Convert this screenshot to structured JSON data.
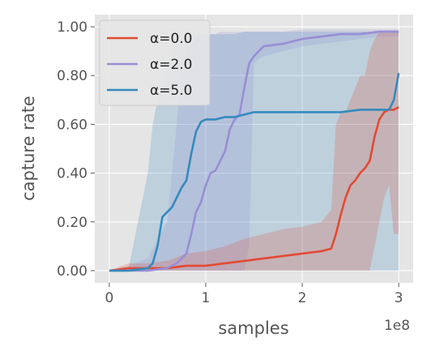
{
  "chart_data": {
    "type": "line",
    "xlabel": "samples",
    "ylabel": "capture rate",
    "x_multiplier_label": "1e8",
    "xlim": [
      -0.15,
      3.15
    ],
    "ylim": [
      -0.05,
      1.05
    ],
    "x_ticks": [
      0,
      1,
      2,
      3
    ],
    "x_tick_labels": [
      "0",
      "1",
      "2",
      "3"
    ],
    "y_ticks": [
      0.0,
      0.2,
      0.4,
      0.6,
      0.8,
      1.0
    ],
    "y_tick_labels": [
      "0.00",
      "0.20",
      "0.40",
      "0.60",
      "0.80",
      "1.00"
    ],
    "grid": true,
    "legend_position": "top-left",
    "series": [
      {
        "name": "α=0.0",
        "color": "#E24A33",
        "x": [
          0,
          0.2,
          0.4,
          0.6,
          0.8,
          1.0,
          1.2,
          1.4,
          1.6,
          1.8,
          2.0,
          2.2,
          2.3,
          2.35,
          2.4,
          2.45,
          2.5,
          2.55,
          2.6,
          2.65,
          2.7,
          2.75,
          2.8,
          2.85,
          2.9,
          2.95,
          3.0
        ],
        "y": [
          0.0,
          0.01,
          0.01,
          0.01,
          0.02,
          0.02,
          0.03,
          0.04,
          0.05,
          0.06,
          0.07,
          0.08,
          0.09,
          0.15,
          0.23,
          0.3,
          0.35,
          0.37,
          0.4,
          0.42,
          0.45,
          0.55,
          0.62,
          0.65,
          0.66,
          0.66,
          0.67
        ],
        "band_lower": [
          0.0,
          0.0,
          0.0,
          0.0,
          0.0,
          0.0,
          0.0,
          0.0,
          0.0,
          0.0,
          0.0,
          0.0,
          0.0,
          0.0,
          0.0,
          0.0,
          0.0,
          0.0,
          0.0,
          0.0,
          0.0,
          0.1,
          0.2,
          0.3,
          0.35,
          0.15,
          0.15
        ],
        "band_upper": [
          0.0,
          0.03,
          0.03,
          0.04,
          0.07,
          0.08,
          0.1,
          0.13,
          0.15,
          0.17,
          0.18,
          0.2,
          0.25,
          0.6,
          0.65,
          0.65,
          0.7,
          0.75,
          0.8,
          0.8,
          0.9,
          0.95,
          0.98,
          0.98,
          0.98,
          0.98,
          0.98
        ]
      },
      {
        "name": "α=2.0",
        "color": "#988ED5",
        "x": [
          0,
          0.2,
          0.4,
          0.6,
          0.7,
          0.75,
          0.8,
          0.85,
          0.9,
          0.95,
          1.0,
          1.05,
          1.1,
          1.15,
          1.2,
          1.25,
          1.3,
          1.35,
          1.4,
          1.45,
          1.5,
          1.55,
          1.6,
          1.8,
          2.0,
          2.2,
          2.4,
          2.6,
          2.8,
          3.0
        ],
        "y": [
          0.0,
          0.0,
          0.0,
          0.01,
          0.03,
          0.05,
          0.07,
          0.15,
          0.24,
          0.28,
          0.35,
          0.4,
          0.41,
          0.45,
          0.49,
          0.58,
          0.62,
          0.64,
          0.75,
          0.85,
          0.88,
          0.9,
          0.92,
          0.93,
          0.95,
          0.96,
          0.97,
          0.97,
          0.98,
          0.98
        ],
        "band_lower": [
          0.0,
          0.0,
          0.0,
          0.0,
          0.0,
          0.0,
          0.0,
          0.0,
          0.0,
          0.0,
          0.0,
          0.0,
          0.0,
          0.0,
          0.0,
          0.0,
          0.0,
          0.0,
          0.0,
          0.1,
          0.85,
          0.87,
          0.88,
          0.9,
          0.92,
          0.93,
          0.94,
          0.95,
          0.96,
          0.96
        ],
        "band_upper": [
          0.0,
          0.02,
          0.05,
          0.2,
          0.6,
          0.85,
          0.9,
          0.93,
          0.95,
          0.96,
          0.97,
          0.97,
          0.97,
          0.98,
          0.98,
          0.98,
          0.98,
          0.98,
          0.98,
          0.98,
          0.98,
          0.98,
          0.98,
          0.98,
          0.99,
          0.99,
          0.99,
          0.99,
          0.99,
          0.99
        ]
      },
      {
        "name": "α=5.0",
        "color": "#348ABD",
        "x": [
          0,
          0.2,
          0.4,
          0.45,
          0.5,
          0.55,
          0.6,
          0.65,
          0.7,
          0.75,
          0.8,
          0.85,
          0.9,
          0.95,
          1.0,
          1.1,
          1.2,
          1.3,
          1.4,
          1.5,
          1.8,
          2.0,
          2.2,
          2.4,
          2.6,
          2.8,
          2.9,
          2.95,
          3.0
        ],
        "y": [
          0.0,
          0.0,
          0.01,
          0.03,
          0.1,
          0.22,
          0.24,
          0.26,
          0.3,
          0.34,
          0.37,
          0.48,
          0.57,
          0.61,
          0.62,
          0.62,
          0.63,
          0.63,
          0.64,
          0.65,
          0.65,
          0.65,
          0.65,
          0.65,
          0.66,
          0.66,
          0.66,
          0.7,
          0.81
        ],
        "band_lower": [
          0.0,
          0.0,
          0.0,
          0.0,
          0.0,
          0.0,
          0.0,
          0.0,
          0.0,
          0.0,
          0.0,
          0.0,
          0.0,
          0.0,
          0.0,
          0.0,
          0.0,
          0.0,
          0.0,
          0.0,
          0.0,
          0.0,
          0.0,
          0.0,
          0.0,
          0.0,
          0.0,
          0.0,
          0.0
        ],
        "band_upper": [
          0.0,
          0.01,
          0.4,
          0.6,
          0.7,
          0.75,
          0.85,
          0.9,
          0.93,
          0.95,
          0.96,
          0.96,
          0.97,
          0.97,
          0.97,
          0.97,
          0.97,
          0.97,
          0.98,
          0.98,
          0.98,
          0.98,
          0.98,
          0.98,
          0.98,
          0.98,
          0.98,
          0.98,
          0.98
        ]
      }
    ]
  }
}
